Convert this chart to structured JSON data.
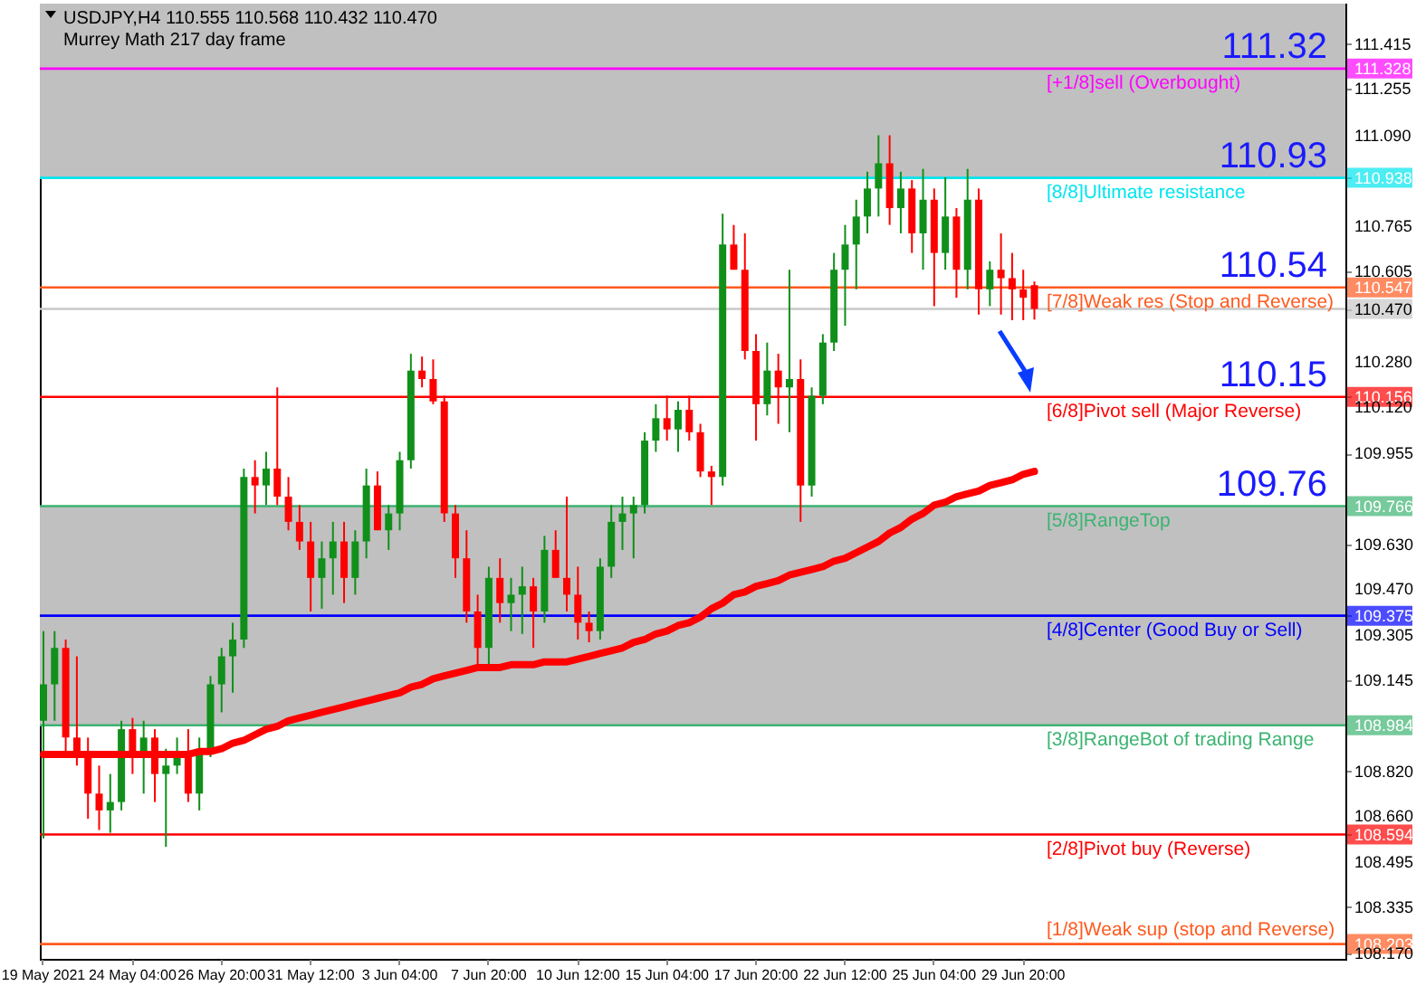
{
  "chart_data": {
    "type": "candlestick",
    "title": "USDJPY,H4  110.555 110.568 110.432 110.470",
    "subtitle": "Murrey Math 217 day frame",
    "categories": [
      "19 May 2021",
      null,
      null,
      null,
      null,
      null,
      null,
      null,
      "24 May 04:00",
      null,
      null,
      null,
      null,
      null,
      null,
      null,
      "26 May 20:00",
      null,
      null,
      null,
      null,
      null,
      null,
      null,
      "31 May 12:00",
      null,
      null,
      null,
      null,
      null,
      null,
      null,
      "3 Jun 04:00",
      null,
      null,
      null,
      null,
      null,
      null,
      null,
      "7 Jun 20:00",
      null,
      null,
      null,
      null,
      null,
      null,
      null,
      "10 Jun 12:00",
      null,
      null,
      null,
      null,
      null,
      null,
      null,
      "15 Jun 04:00",
      null,
      null,
      null,
      null,
      null,
      null,
      null,
      "17 Jun 20:00",
      null,
      null,
      null,
      null,
      null,
      null,
      null,
      "22 Jun 12:00",
      null,
      null,
      null,
      null,
      null,
      null,
      null,
      "25 Jun 04:00",
      null,
      null,
      null,
      null,
      null,
      null,
      null,
      "29 Jun 20:00",
      null
    ],
    "ohlc": [
      [
        109.0,
        109.32,
        108.58,
        109.13
      ],
      [
        109.13,
        109.32,
        109.0,
        109.26
      ],
      [
        109.26,
        109.29,
        108.87,
        108.94
      ],
      [
        108.94,
        109.23,
        108.84,
        108.87
      ],
      [
        108.87,
        108.94,
        108.65,
        108.74
      ],
      [
        108.74,
        108.84,
        108.61,
        108.68
      ],
      [
        108.68,
        108.81,
        108.6,
        108.71
      ],
      [
        108.71,
        109.0,
        108.68,
        108.97
      ],
      [
        108.97,
        109.01,
        108.81,
        108.87
      ],
      [
        108.87,
        109.0,
        108.74,
        108.94
      ],
      [
        108.94,
        108.97,
        108.71,
        108.81
      ],
      [
        108.81,
        108.9,
        108.55,
        108.84
      ],
      [
        108.84,
        108.94,
        108.81,
        108.87
      ],
      [
        108.87,
        108.97,
        108.71,
        108.74
      ],
      [
        108.74,
        108.94,
        108.68,
        108.9
      ],
      [
        108.9,
        109.16,
        108.87,
        109.13
      ],
      [
        109.13,
        109.26,
        109.03,
        109.23
      ],
      [
        109.23,
        109.35,
        109.1,
        109.29
      ],
      [
        109.29,
        109.9,
        109.26,
        109.87
      ],
      [
        109.87,
        109.93,
        109.74,
        109.84
      ],
      [
        109.84,
        109.96,
        109.77,
        109.9
      ],
      [
        109.9,
        110.19,
        109.77,
        109.8
      ],
      [
        109.8,
        109.87,
        109.68,
        109.71
      ],
      [
        109.71,
        109.77,
        109.61,
        109.64
      ],
      [
        109.64,
        109.71,
        109.39,
        109.51
      ],
      [
        109.51,
        109.64,
        109.4,
        109.58
      ],
      [
        109.58,
        109.71,
        109.45,
        109.64
      ],
      [
        109.64,
        109.71,
        109.42,
        109.51
      ],
      [
        109.51,
        109.68,
        109.45,
        109.64
      ],
      [
        109.64,
        109.9,
        109.58,
        109.84
      ],
      [
        109.84,
        109.89,
        109.68,
        109.68
      ],
      [
        109.68,
        109.77,
        109.61,
        109.74
      ],
      [
        109.74,
        109.96,
        109.68,
        109.93
      ],
      [
        109.93,
        110.31,
        109.9,
        110.25
      ],
      [
        110.25,
        110.3,
        110.19,
        110.22
      ],
      [
        110.22,
        110.29,
        110.13,
        110.14
      ],
      [
        110.14,
        110.16,
        109.71,
        109.74
      ],
      [
        109.74,
        109.77,
        109.51,
        109.58
      ],
      [
        109.58,
        109.68,
        109.35,
        109.39
      ],
      [
        109.39,
        109.45,
        109.18,
        109.26
      ],
      [
        109.26,
        109.55,
        109.19,
        109.51
      ],
      [
        109.51,
        109.58,
        109.35,
        109.42
      ],
      [
        109.42,
        109.51,
        109.32,
        109.45
      ],
      [
        109.45,
        109.55,
        109.31,
        109.48
      ],
      [
        109.48,
        109.51,
        109.26,
        109.39
      ],
      [
        109.39,
        109.66,
        109.35,
        109.61
      ],
      [
        109.61,
        109.68,
        109.51,
        109.51
      ],
      [
        109.51,
        109.8,
        109.39,
        109.45
      ],
      [
        109.45,
        109.55,
        109.29,
        109.35
      ],
      [
        109.35,
        109.39,
        109.28,
        109.32
      ],
      [
        109.32,
        109.58,
        109.29,
        109.55
      ],
      [
        109.55,
        109.77,
        109.51,
        109.71
      ],
      [
        109.71,
        109.8,
        109.61,
        109.74
      ],
      [
        109.74,
        109.8,
        109.58,
        109.77
      ],
      [
        109.77,
        110.03,
        109.74,
        110.0
      ],
      [
        110.0,
        110.13,
        109.96,
        110.08
      ],
      [
        110.08,
        110.16,
        110.0,
        110.04
      ],
      [
        110.04,
        110.14,
        109.96,
        110.11
      ],
      [
        110.11,
        110.16,
        110.0,
        110.03
      ],
      [
        110.03,
        110.06,
        109.87,
        109.89
      ],
      [
        109.89,
        109.91,
        109.77,
        109.87
      ],
      [
        109.87,
        110.81,
        109.84,
        110.7
      ],
      [
        110.7,
        110.77,
        110.61,
        110.61
      ],
      [
        110.61,
        110.74,
        110.29,
        110.32
      ],
      [
        110.32,
        110.38,
        110.0,
        110.13
      ],
      [
        110.13,
        110.35,
        110.09,
        110.25
      ],
      [
        110.25,
        110.31,
        110.06,
        110.19
      ],
      [
        110.19,
        110.61,
        110.03,
        110.22
      ],
      [
        110.22,
        110.29,
        109.71,
        109.84
      ],
      [
        109.84,
        110.19,
        109.8,
        110.16
      ],
      [
        110.16,
        110.38,
        110.13,
        110.35
      ],
      [
        110.35,
        110.67,
        110.32,
        110.61
      ],
      [
        110.61,
        110.77,
        110.41,
        110.7
      ],
      [
        110.7,
        110.86,
        110.54,
        110.8
      ],
      [
        110.8,
        110.96,
        110.74,
        110.9
      ],
      [
        110.9,
        111.09,
        110.8,
        110.99
      ],
      [
        110.99,
        111.09,
        110.77,
        110.83
      ],
      [
        110.83,
        110.96,
        110.74,
        110.9
      ],
      [
        110.9,
        110.93,
        110.67,
        110.74
      ],
      [
        110.74,
        110.97,
        110.61,
        110.86
      ],
      [
        110.86,
        110.9,
        110.48,
        110.67
      ],
      [
        110.67,
        110.94,
        110.61,
        110.8
      ],
      [
        110.8,
        110.83,
        110.51,
        110.61
      ],
      [
        110.61,
        110.97,
        110.54,
        110.86
      ],
      [
        110.86,
        110.9,
        110.45,
        110.54
      ],
      [
        110.54,
        110.64,
        110.48,
        110.61
      ],
      [
        110.61,
        110.74,
        110.45,
        110.58
      ],
      [
        110.58,
        110.67,
        110.43,
        110.54
      ],
      [
        110.54,
        110.61,
        110.43,
        110.51
      ],
      [
        110.555,
        110.568,
        110.432,
        110.47
      ]
    ],
    "series": [
      {
        "type": "line",
        "color": "#ff0000",
        "values": [
          108.88,
          108.88,
          108.88,
          108.88,
          108.88,
          108.88,
          108.88,
          108.88,
          108.88,
          108.88,
          108.88,
          108.88,
          108.88,
          108.88,
          108.89,
          108.89,
          108.9,
          108.92,
          108.93,
          108.95,
          108.97,
          108.98,
          109.0,
          109.01,
          109.02,
          109.03,
          109.04,
          109.05,
          109.06,
          109.07,
          109.08,
          109.09,
          109.1,
          109.12,
          109.13,
          109.15,
          109.16,
          109.17,
          109.18,
          109.19,
          109.19,
          109.19,
          109.2,
          109.2,
          109.2,
          109.21,
          109.21,
          109.21,
          109.22,
          109.23,
          109.24,
          109.25,
          109.26,
          109.28,
          109.29,
          109.31,
          109.32,
          109.34,
          109.35,
          109.37,
          109.4,
          109.42,
          109.45,
          109.46,
          109.48,
          109.49,
          109.5,
          109.52,
          109.53,
          109.54,
          109.55,
          109.57,
          109.58,
          109.6,
          109.62,
          109.64,
          109.67,
          109.69,
          109.72,
          109.74,
          109.77,
          109.78,
          109.8,
          109.81,
          109.82,
          109.84,
          109.85,
          109.86,
          109.88,
          109.89
        ]
      }
    ],
    "ylim": [
      108.15,
      111.56
    ],
    "yticks": [
      111.415,
      111.328,
      111.255,
      {
        "value": 111.09,
        "label": "111.090"
      },
      110.938,
      110.765,
      110.605,
      110.547,
      {
        "value": 110.47,
        "label": "110.470"
      },
      {
        "value": 110.28,
        "label": "110.280"
      },
      110.156,
      {
        "value": 110.12,
        "label": "110.120"
      },
      109.955,
      109.766,
      {
        "value": 109.63,
        "label": "109.630"
      },
      {
        "value": 109.47,
        "label": "109.470"
      },
      109.375,
      109.305,
      109.145,
      108.984,
      {
        "value": 108.82,
        "label": "108.820"
      },
      {
        "value": 108.66,
        "label": "108.660"
      },
      108.594,
      108.495,
      108.335,
      108.203,
      {
        "value": 108.17,
        "label": "108.170"
      }
    ],
    "bands": [
      {
        "axis": "y",
        "from": 110.938,
        "to": 111.56,
        "color": "#c0c0c0"
      },
      {
        "axis": "y",
        "from": 108.984,
        "to": 109.766,
        "color": "#c0c0c0"
      }
    ],
    "ref_lines": [
      {
        "axis": "y",
        "value": 111.328,
        "label": "[+1/8]sell (Overbought)",
        "color": "#ff00ff"
      },
      {
        "axis": "y",
        "value": 110.938,
        "label": "[8/8]Ultimate resistance",
        "color": "#00e5ee"
      },
      {
        "axis": "y",
        "value": 110.547,
        "label": "[7/8]Weak res (Stop and Reverse)",
        "color": "#ff5a1f"
      },
      {
        "axis": "y",
        "value": 110.47,
        "color": "#c8c8c8"
      },
      {
        "axis": "y",
        "value": 110.156,
        "label": "[6/8]Pivot sell (Major Reverse)",
        "color": "#ff0000"
      },
      {
        "axis": "y",
        "value": 109.766,
        "label": "[5/8]RangeTop",
        "color": "#3cb371"
      },
      {
        "axis": "y",
        "value": 109.375,
        "label": "[4/8]Center (Good Buy or Sell)",
        "color": "#0000ff"
      },
      {
        "axis": "y",
        "value": 108.984,
        "label": "[3/8]RangeBot of trading Range",
        "color": "#3cb371"
      },
      {
        "axis": "y",
        "value": 108.594,
        "label": "[2/8]Pivot buy (Reverse)",
        "color": "#ff0000"
      },
      {
        "axis": "y",
        "value": 108.203,
        "label": "[1/8]Weak sup (stop and Reverse)",
        "color": "#ff5a1f"
      }
    ],
    "annotations": [
      {
        "text": "111.32",
        "y": 111.328
      },
      {
        "text": "110.93",
        "y": 110.938
      },
      {
        "text": "110.54",
        "y": 110.547
      },
      {
        "text": "110.15",
        "y": 110.156
      },
      {
        "text": "109.76",
        "y": 109.766
      }
    ]
  }
}
